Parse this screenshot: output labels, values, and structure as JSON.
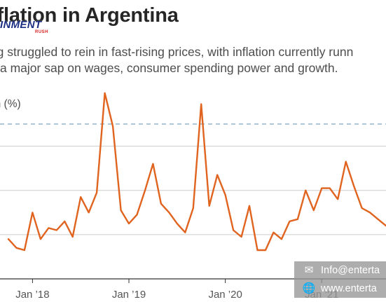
{
  "header": {
    "title": "nflation in Argentina",
    "logo_text": "INMENT",
    "logo_subtext": "RUSH"
  },
  "subtitle": {
    "line1": "ing struggled to rein in fast-rising prices, with inflation currently runn",
    "line2": "a major sap on wages, consumer spending power and growth."
  },
  "contact": {
    "email_icon": "envelope-icon",
    "email_text": "Info@enterta",
    "web_icon": "globe-icon",
    "web_text": "www.enterta"
  },
  "colors": {
    "line": "#e0641f",
    "grid": "#cccccc",
    "reference_line": "#7fa3bd",
    "axis": "#333333"
  },
  "chart_data": {
    "type": "line",
    "ylabel": "on (%)",
    "x_tick_labels": [
      "Jan ’18",
      "Jan ’19",
      "Jan ’20",
      "Jan ’21"
    ],
    "x_tick_index": [
      3,
      15,
      27,
      39
    ],
    "ylim": [
      0,
      7
    ],
    "y_gridlines": [
      0,
      2,
      4,
      6
    ],
    "reference_line": 7,
    "grid": true,
    "series": [
      {
        "values": [
          1.8,
          1.4,
          1.3,
          3.0,
          1.8,
          2.3,
          2.2,
          2.6,
          1.9,
          3.7,
          3.0,
          3.9,
          8.4,
          6.9,
          3.1,
          2.5,
          2.9,
          4.0,
          5.2,
          3.4,
          3.0,
          2.5,
          2.1,
          3.2,
          7.9,
          3.3,
          4.7,
          3.8,
          2.2,
          1.9,
          3.3,
          1.3,
          1.3,
          2.1,
          1.8,
          2.6,
          2.7,
          4.0,
          3.1,
          4.1,
          4.1,
          3.6,
          5.3,
          4.2,
          3.2,
          3.0,
          2.7,
          2.4
        ]
      }
    ]
  }
}
